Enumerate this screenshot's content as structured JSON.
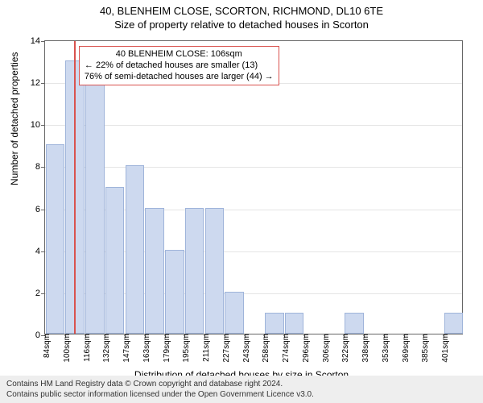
{
  "title_line1": "40, BLENHEIM CLOSE, SCORTON, RICHMOND, DL10 6TE",
  "title_line2": "Size of property relative to detached houses in Scorton",
  "ylabel": "Number of detached properties",
  "xlabel": "Distribution of detached houses by size in Scorton",
  "chart": {
    "ylim": [
      0,
      14
    ],
    "yticks": [
      0,
      2,
      4,
      6,
      8,
      10,
      12,
      14
    ],
    "xtick_labels": [
      "84sqm",
      "100sqm",
      "116sqm",
      "132sqm",
      "147sqm",
      "163sqm",
      "179sqm",
      "195sqm",
      "211sqm",
      "227sqm",
      "243sqm",
      "258sqm",
      "274sqm",
      "296sqm",
      "306sqm",
      "322sqm",
      "338sqm",
      "353sqm",
      "369sqm",
      "385sqm",
      "401sqm"
    ],
    "bars": [
      9,
      13,
      12,
      7,
      8,
      6,
      4,
      6,
      6,
      2,
      0,
      1,
      1,
      0,
      0,
      1,
      0,
      0,
      0,
      0,
      1
    ],
    "bar_fill": "#cdd9ef",
    "bar_border": "#9fb4da",
    "grid_color": "#e5e5e5",
    "highlight_index_fractional": 1.45,
    "highlight_color": "#d9534f"
  },
  "annotation": {
    "line1": "40 BLENHEIM CLOSE: 106sqm",
    "line2": "← 22% of detached houses are smaller (13)",
    "line3": "76% of semi-detached houses are larger (44) →",
    "border_color": "#d9534f"
  },
  "footer": {
    "line1": "Contains HM Land Registry data © Crown copyright and database right 2024.",
    "line2": "Contains public sector information licensed under the Open Government Licence v3.0."
  }
}
